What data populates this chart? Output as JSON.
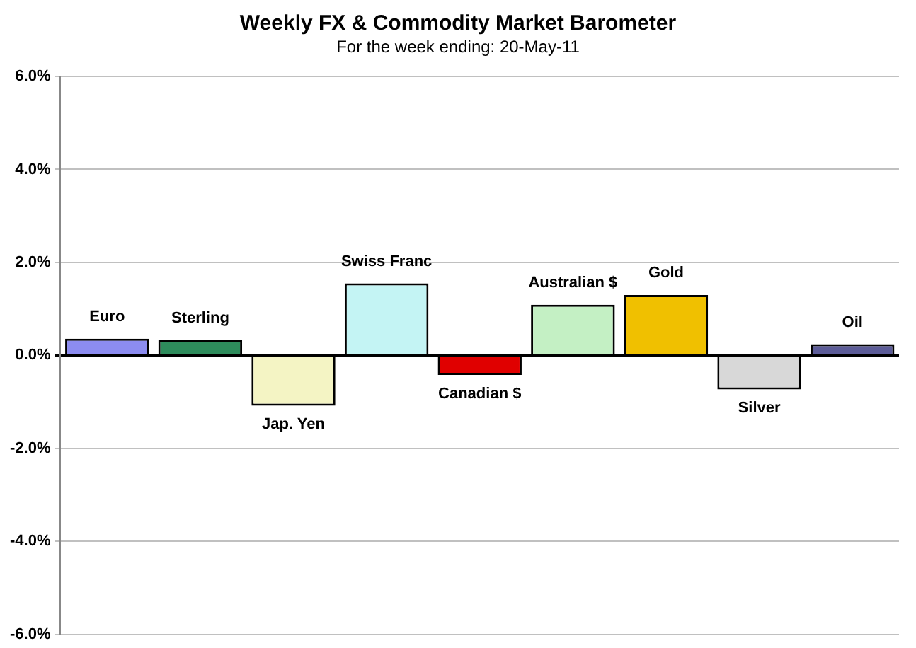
{
  "chart_data": {
    "type": "bar",
    "title": "Weekly FX & Commodity  Market Barometer",
    "subtitle": "For the week ending:  20-May-11",
    "categories": [
      "Euro",
      "Sterling",
      "Jap. Yen",
      "Swiss Franc",
      "Canadian $",
      "Australian $",
      "Gold",
      "Silver",
      "Oil"
    ],
    "values": [
      0.36,
      0.33,
      -1.08,
      1.55,
      -0.42,
      1.09,
      1.3,
      -0.73,
      0.24
    ],
    "colors": [
      "#8c8cf0",
      "#2e8c5c",
      "#f4f4c4",
      "#c4f4f4",
      "#e00000",
      "#c4f0c4",
      "#f0c000",
      "#d8d8d8",
      "#5c5c98"
    ],
    "ylim": [
      -6,
      6
    ],
    "yticks": [
      {
        "value": -6,
        "label": "-6.0%"
      },
      {
        "value": -4,
        "label": "-4.0%"
      },
      {
        "value": -2,
        "label": "-2.0%"
      },
      {
        "value": 0,
        "label": "0.0%"
      },
      {
        "value": 2,
        "label": "2.0%"
      },
      {
        "value": 4,
        "label": "4.0%"
      },
      {
        "value": 6,
        "label": "6.0%"
      }
    ],
    "grid": "y",
    "legend": false,
    "tick_labels": "y"
  }
}
